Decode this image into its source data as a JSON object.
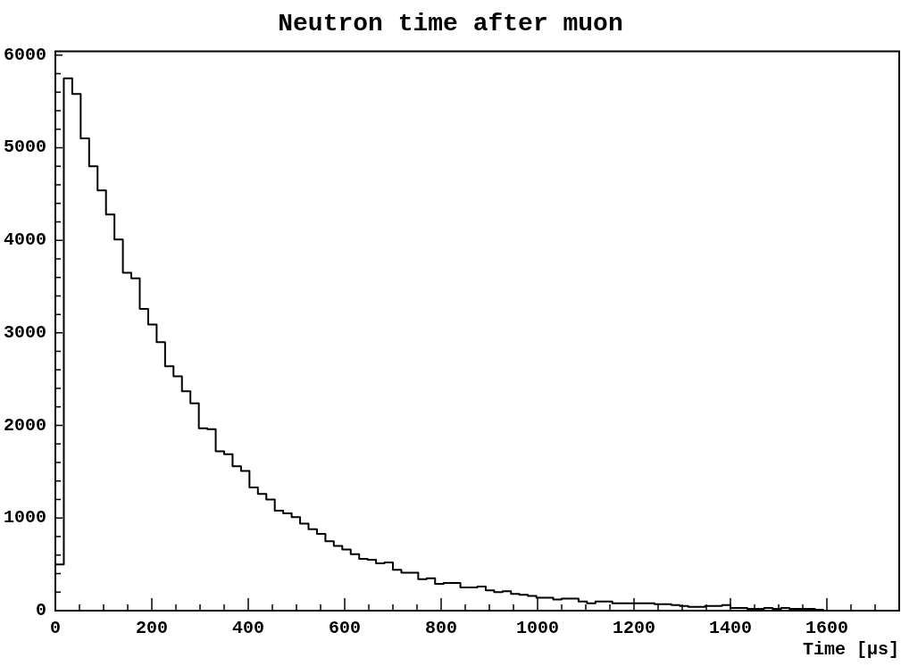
{
  "chart_data": {
    "type": "histogram",
    "title": "Neutron time after muon",
    "xlabel": "Time [µs]",
    "bins": [
      0,
      17.5,
      35,
      52.5,
      70,
      87.5,
      105,
      122.5,
      140,
      157.5,
      175,
      192.5,
      210,
      227.5,
      245,
      262.5,
      280,
      297.5,
      315,
      332.5,
      350,
      367.5,
      385,
      402.5,
      420,
      437.5,
      455,
      472.5,
      490,
      507.5,
      525,
      542.5,
      560,
      577.5,
      595,
      612.5,
      630,
      647.5,
      665,
      682.5,
      700,
      717.5,
      735,
      752.5,
      770,
      787.5,
      805,
      822.5,
      840,
      857.5,
      875,
      892.5,
      910,
      927.5,
      945,
      962.5,
      980,
      997.5,
      1015,
      1032.5,
      1050,
      1067.5,
      1085,
      1102.5,
      1120,
      1137.5,
      1155,
      1172.5,
      1190,
      1207.5,
      1225,
      1242.5,
      1260,
      1277.5,
      1295,
      1312.5,
      1330,
      1347.5,
      1365,
      1382.5,
      1400,
      1417.5,
      1435,
      1452.5,
      1470,
      1487.5,
      1505,
      1522.5,
      1540,
      1557.5,
      1575,
      1592.5,
      1610,
      1627.5,
      1645,
      1662.5,
      1680,
      1697.5,
      1715,
      1732.5,
      1750
    ],
    "values": [
      500,
      5750,
      5580,
      5100,
      4800,
      4540,
      4280,
      4010,
      3650,
      3590,
      3260,
      3090,
      2900,
      2640,
      2530,
      2370,
      2240,
      1970,
      1960,
      1720,
      1690,
      1560,
      1510,
      1330,
      1260,
      1200,
      1080,
      1050,
      1010,
      940,
      880,
      830,
      750,
      700,
      660,
      610,
      560,
      550,
      510,
      520,
      440,
      410,
      410,
      340,
      350,
      290,
      300,
      300,
      250,
      250,
      260,
      220,
      200,
      210,
      180,
      170,
      160,
      140,
      140,
      120,
      130,
      130,
      100,
      80,
      100,
      100,
      80,
      80,
      80,
      80,
      80,
      70,
      70,
      60,
      50,
      40,
      40,
      50,
      50,
      60,
      30,
      30,
      20,
      20,
      30,
      20,
      30,
      20,
      20,
      20,
      10,
      0,
      0,
      0,
      0,
      0,
      0,
      0,
      0,
      0
    ],
    "color": "#000000",
    "xlim": [
      0,
      1750
    ],
    "xticks": [
      0,
      {
        "value": 50,
        "label": null
      },
      {
        "value": 100,
        "label": null
      },
      {
        "value": 150,
        "label": null
      },
      200,
      {
        "value": 250,
        "label": null
      },
      {
        "value": 300,
        "label": null
      },
      {
        "value": 350,
        "label": null
      },
      400,
      {
        "value": 450,
        "label": null
      },
      {
        "value": 500,
        "label": null
      },
      {
        "value": 550,
        "label": null
      },
      600,
      {
        "value": 650,
        "label": null
      },
      {
        "value": 700,
        "label": null
      },
      {
        "value": 750,
        "label": null
      },
      800,
      {
        "value": 850,
        "label": null
      },
      {
        "value": 900,
        "label": null
      },
      {
        "value": 950,
        "label": null
      },
      1000,
      {
        "value": 1050,
        "label": null
      },
      {
        "value": 1100,
        "label": null
      },
      {
        "value": 1150,
        "label": null
      },
      1200,
      {
        "value": 1250,
        "label": null
      },
      {
        "value": 1300,
        "label": null
      },
      {
        "value": 1350,
        "label": null
      },
      1400,
      {
        "value": 1450,
        "label": null
      },
      {
        "value": 1500,
        "label": null
      },
      {
        "value": 1550,
        "label": null
      },
      1600,
      {
        "value": 1650,
        "label": null
      },
      {
        "value": 1700,
        "label": null
      }
    ],
    "ylim": [
      0,
      6040
    ],
    "yticks": [
      0,
      {
        "value": 200,
        "label": null
      },
      {
        "value": 400,
        "label": null
      },
      {
        "value": 600,
        "label": null
      },
      {
        "value": 800,
        "label": null
      },
      1000,
      {
        "value": 1200,
        "label": null
      },
      {
        "value": 1400,
        "label": null
      },
      {
        "value": 1600,
        "label": null
      },
      {
        "value": 1800,
        "label": null
      },
      2000,
      {
        "value": 2200,
        "label": null
      },
      {
        "value": 2400,
        "label": null
      },
      {
        "value": 2600,
        "label": null
      },
      {
        "value": 2800,
        "label": null
      },
      3000,
      {
        "value": 3200,
        "label": null
      },
      {
        "value": 3400,
        "label": null
      },
      {
        "value": 3600,
        "label": null
      },
      {
        "value": 3800,
        "label": null
      },
      4000,
      {
        "value": 4200,
        "label": null
      },
      {
        "value": 4400,
        "label": null
      },
      {
        "value": 4600,
        "label": null
      },
      {
        "value": 4800,
        "label": null
      },
      5000,
      {
        "value": 5200,
        "label": null
      },
      {
        "value": 5400,
        "label": null
      },
      {
        "value": 5600,
        "label": null
      },
      {
        "value": 5800,
        "label": null
      },
      6000
    ],
    "grid": false,
    "legend": false
  }
}
